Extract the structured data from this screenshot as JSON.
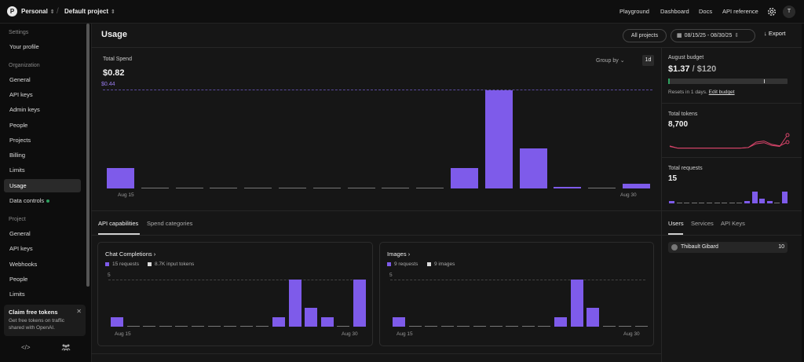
{
  "topbar": {
    "org_initial": "P",
    "org_name": "Personal",
    "project_name": "Default project",
    "nav": [
      "Playground",
      "Dashboard",
      "Docs",
      "API reference"
    ],
    "user_initial": "T"
  },
  "sidebar": {
    "settings_label": "Settings",
    "your_profile": "Your profile",
    "organization_label": "Organization",
    "org_items": [
      "General",
      "API keys",
      "Admin keys",
      "People",
      "Projects",
      "Billing",
      "Limits",
      "Usage",
      "Data controls"
    ],
    "project_label": "Project",
    "project_items": [
      "General",
      "API keys",
      "Webhooks",
      "People",
      "Limits"
    ],
    "promo_title": "Claim free tokens",
    "promo_text": "Get free tokens on traffic shared with OpenAI."
  },
  "header": {
    "title": "Usage",
    "projects_button": "All projects",
    "date_range": "08/15/25 - 08/30/25",
    "export_label": "Export"
  },
  "spend": {
    "label": "Total Spend",
    "value": "$0.82",
    "ref_value": "$0.44",
    "group_by": "Group by",
    "interval": "1d",
    "x_start": "Aug 15",
    "x_end": "Aug 30"
  },
  "budget": {
    "label": "August budget",
    "spent": "$1.37",
    "limit": "$120",
    "spent_fraction": 0.0114,
    "reset_text": "Resets in 1 days.",
    "edit_link": "Edit budget"
  },
  "tokens": {
    "label": "Total tokens",
    "value": "8,700"
  },
  "requests": {
    "label": "Total requests",
    "value": "15"
  },
  "tabs": {
    "api_capabilities": "API capabilities",
    "spend_categories": "Spend categories"
  },
  "right_tabs": {
    "users": "Users",
    "services": "Services",
    "api_keys": "API Keys"
  },
  "users_list": [
    {
      "name": "Thibault Gibard",
      "count": "10"
    }
  ],
  "cards": {
    "chat": {
      "title": "Chat Completions",
      "legend1": "15 requests",
      "legend2": "8.7K input tokens",
      "y_tick": "5",
      "x_start": "Aug 15",
      "x_end": "Aug 30"
    },
    "images": {
      "title": "Images",
      "legend1": "9 requests",
      "legend2": "9 images",
      "y_tick": "5",
      "x_start": "Aug 15",
      "x_end": "Aug 30"
    }
  },
  "colors": {
    "accent": "#7e5bea",
    "green": "#2ea15f",
    "line": "#d9446a"
  },
  "chart_data": [
    {
      "type": "bar",
      "title": "Total Spend",
      "categories": [
        "Aug 15",
        "Aug 16",
        "Aug 17",
        "Aug 18",
        "Aug 19",
        "Aug 20",
        "Aug 21",
        "Aug 22",
        "Aug 23",
        "Aug 24",
        "Aug 25",
        "Aug 26",
        "Aug 27",
        "Aug 28",
        "Aug 29",
        "Aug 30"
      ],
      "values": [
        0.09,
        0,
        0,
        0,
        0,
        0,
        0,
        0,
        0,
        0,
        0.09,
        0.44,
        0.18,
        0.004,
        0,
        0.02
      ],
      "reference_line": 0.44,
      "ylim": [
        0,
        0.44
      ]
    },
    {
      "type": "line",
      "title": "Total tokens",
      "categories": [
        "Aug 15",
        "Aug 16",
        "Aug 17",
        "Aug 18",
        "Aug 19",
        "Aug 20",
        "Aug 21",
        "Aug 22",
        "Aug 23",
        "Aug 24",
        "Aug 25",
        "Aug 26",
        "Aug 27",
        "Aug 28",
        "Aug 29",
        "Aug 30"
      ],
      "series": [
        {
          "values": [
            600,
            200,
            200,
            200,
            200,
            200,
            200,
            200,
            200,
            200,
            300,
            1300,
            1500,
            900,
            600,
            1300
          ]
        },
        {
          "values": [
            500,
            200,
            200,
            200,
            200,
            200,
            200,
            200,
            200,
            200,
            300,
            1000,
            1200,
            700,
            500,
            2600
          ]
        }
      ]
    },
    {
      "type": "bar",
      "title": "Total requests",
      "categories": [
        "Aug 15",
        "Aug 16",
        "Aug 17",
        "Aug 18",
        "Aug 19",
        "Aug 20",
        "Aug 21",
        "Aug 22",
        "Aug 23",
        "Aug 24",
        "Aug 25",
        "Aug 26",
        "Aug 27",
        "Aug 28",
        "Aug 29",
        "Aug 30"
      ],
      "values": [
        1,
        0,
        0,
        0,
        0,
        0,
        0,
        0,
        0,
        0,
        1,
        5,
        2,
        1,
        0,
        5
      ]
    },
    {
      "type": "bar",
      "title": "Chat Completions",
      "categories": [
        "Aug 15",
        "Aug 16",
        "Aug 17",
        "Aug 18",
        "Aug 19",
        "Aug 20",
        "Aug 21",
        "Aug 22",
        "Aug 23",
        "Aug 24",
        "Aug 25",
        "Aug 26",
        "Aug 27",
        "Aug 28",
        "Aug 29",
        "Aug 30"
      ],
      "values": [
        1,
        0,
        0,
        0,
        0,
        0,
        0,
        0,
        0,
        0,
        1,
        5,
        2,
        1,
        0,
        5
      ],
      "ylim": [
        0,
        5
      ]
    },
    {
      "type": "bar",
      "title": "Images",
      "categories": [
        "Aug 15",
        "Aug 16",
        "Aug 17",
        "Aug 18",
        "Aug 19",
        "Aug 20",
        "Aug 21",
        "Aug 22",
        "Aug 23",
        "Aug 24",
        "Aug 25",
        "Aug 26",
        "Aug 27",
        "Aug 28",
        "Aug 29",
        "Aug 30"
      ],
      "values": [
        1,
        0,
        0,
        0,
        0,
        0,
        0,
        0,
        0,
        0,
        1,
        5,
        2,
        0,
        0,
        0
      ],
      "ylim": [
        0,
        5
      ]
    }
  ]
}
